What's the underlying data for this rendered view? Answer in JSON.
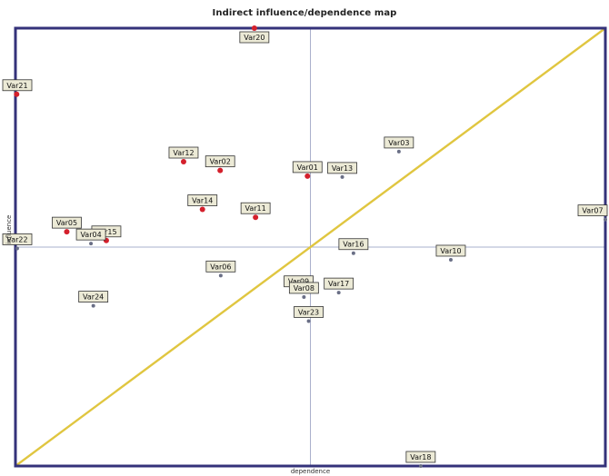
{
  "chart_data": {
    "type": "scatter",
    "title": "Indirect influence/dependence map",
    "xlabel": "dependence",
    "ylabel": "influence",
    "xlim": [
      0,
      100
    ],
    "ylim": [
      0,
      100
    ],
    "grid": false,
    "crosshair": {
      "x": 50,
      "y": 50
    },
    "diagonal": {
      "from": [
        0,
        0
      ],
      "to": [
        100,
        100
      ],
      "color": "#e0c640"
    },
    "frame_color": "#34327a",
    "crosshair_color": "#aab0cc",
    "series": [
      {
        "color": "#d4202c",
        "points": [
          {
            "label": "Var20",
            "x": 40.5,
            "y": 100
          },
          {
            "label": "Var21",
            "x": 0.2,
            "y": 84.9
          },
          {
            "label": "Var12",
            "x": 28.5,
            "y": 69.5
          },
          {
            "label": "Var02",
            "x": 34.7,
            "y": 67.5
          },
          {
            "label": "Var14",
            "x": 31.7,
            "y": 58.6
          },
          {
            "label": "Var01",
            "x": 49.5,
            "y": 66.2
          },
          {
            "label": "Var11",
            "x": 40.7,
            "y": 56.8
          },
          {
            "label": "Var05",
            "x": 8.7,
            "y": 53.5
          },
          {
            "label": "Var15",
            "x": 15.4,
            "y": 51.5
          }
        ]
      },
      {
        "color": "#6a6f86",
        "points": [
          {
            "label": "Var03",
            "x": 65.0,
            "y": 71.8
          },
          {
            "label": "Var13",
            "x": 55.4,
            "y": 66.0
          },
          {
            "label": "Var07",
            "x": 100,
            "y": 56.3
          },
          {
            "label": "Var22",
            "x": 0.3,
            "y": 49.7
          },
          {
            "label": "Var04",
            "x": 12.8,
            "y": 50.8
          },
          {
            "label": "Var16",
            "x": 57.3,
            "y": 48.6
          },
          {
            "label": "Var10",
            "x": 73.8,
            "y": 47.1
          },
          {
            "label": "Var06",
            "x": 34.8,
            "y": 43.5
          },
          {
            "label": "Var24",
            "x": 13.2,
            "y": 36.6
          },
          {
            "label": "Var09",
            "x": 48.0,
            "y": 40.1
          },
          {
            "label": "Var17",
            "x": 54.8,
            "y": 39.6
          },
          {
            "label": "Var08",
            "x": 48.9,
            "y": 38.6
          },
          {
            "label": "Var23",
            "x": 49.7,
            "y": 33.1
          },
          {
            "label": "Var18",
            "x": 68.7,
            "y": 0
          }
        ]
      }
    ]
  }
}
